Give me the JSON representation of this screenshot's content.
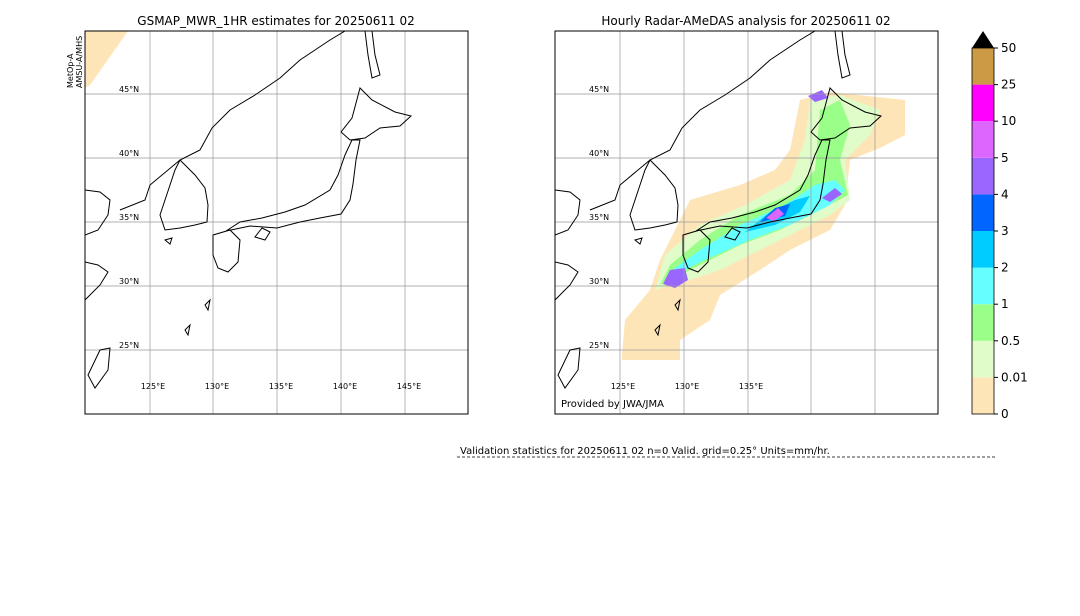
{
  "maps": [
    {
      "title": "GSMAP_MWR_1HR estimates for 20250611 02",
      "side_label": [
        "MetOp-A",
        "AMSU-A/MHS"
      ],
      "lat_labels": [
        "45°N",
        "40°N",
        "35°N",
        "30°N",
        "25°N"
      ],
      "lon_labels": [
        "125°E",
        "130°E",
        "135°E",
        "140°E",
        "145°E"
      ]
    },
    {
      "title": "Hourly Radar-AMeDAS analysis for 20250611 02",
      "credit": "Provided by JWA/JMA",
      "lat_labels": [
        "45°N",
        "40°N",
        "35°N",
        "30°N",
        "25°N"
      ],
      "lon_labels": [
        "125°E",
        "130°E",
        "135°E"
      ]
    }
  ],
  "colorbar": {
    "ticks": [
      0,
      0.01,
      0.5,
      1,
      2,
      3,
      4,
      5,
      10,
      25,
      50
    ],
    "colors": [
      "#fee5b8",
      "#e0fcc8",
      "#99ff88",
      "#66ffff",
      "#00ccff",
      "#0066ff",
      "#9966ff",
      "#dd66ff",
      "#ff00ff",
      "#cc9944"
    ]
  },
  "validation": "Validation statistics for 20250611 02  n=0 Valid. grid=0.25° Units=mm/hr."
}
